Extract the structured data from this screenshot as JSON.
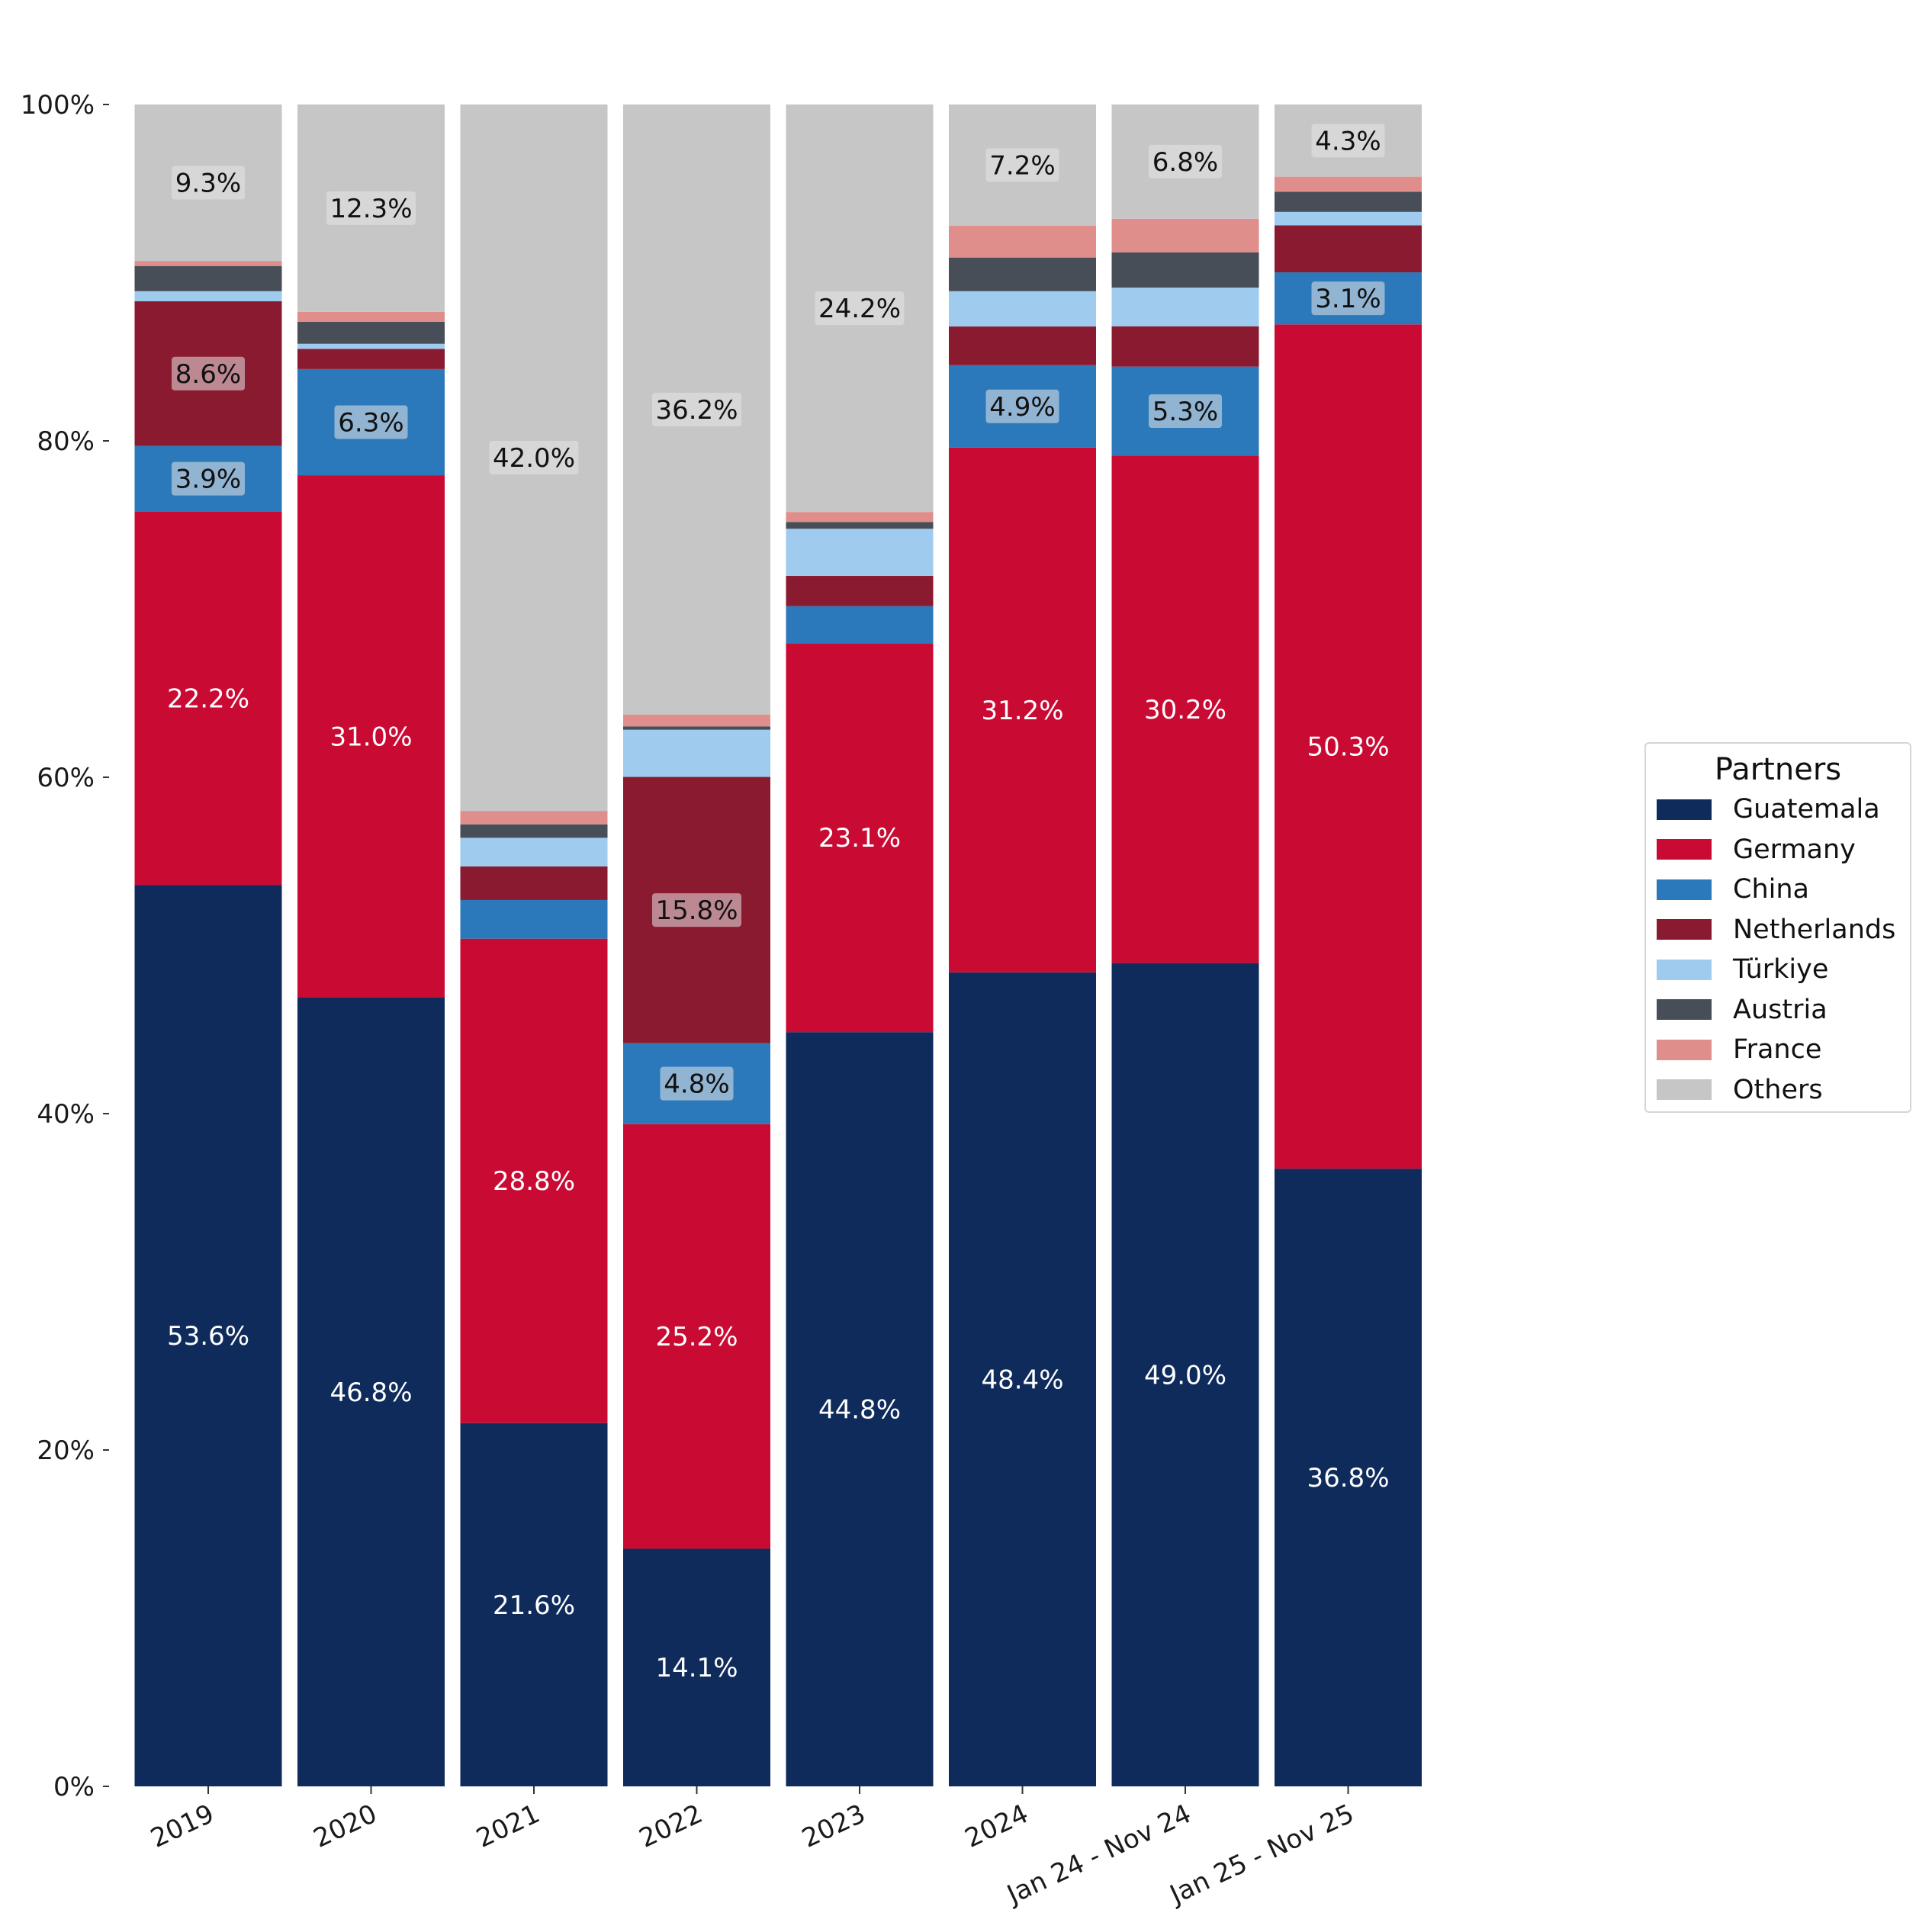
{
  "chart_data": {
    "type": "bar",
    "stacked": true,
    "normalized_percent": true,
    "categories": [
      "2019",
      "2020",
      "2021",
      "2022",
      "2023",
      "2024",
      "Jan 24 - Nov 24",
      "Jan 25 - Nov 25"
    ],
    "y_ticks": [
      "0%",
      "20%",
      "40%",
      "60%",
      "80%",
      "100%"
    ],
    "ylim": [
      0,
      100
    ],
    "grid": false,
    "legend": {
      "title": "Partners",
      "placement": "right"
    },
    "series": [
      {
        "name": "Guatemala",
        "color": "#0e2b5c",
        "values": [
          53.6,
          46.8,
          21.6,
          14.1,
          44.8,
          48.4,
          49.0,
          36.8
        ],
        "labels": [
          "53.6%",
          "46.8%",
          "21.6%",
          "14.1%",
          "44.8%",
          "48.4%",
          "49.0%",
          "36.8%"
        ]
      },
      {
        "name": "Germany",
        "color": "#c90b34",
        "values": [
          22.2,
          31.0,
          28.8,
          25.2,
          23.1,
          31.2,
          30.2,
          50.3
        ],
        "labels": [
          "22.2%",
          "31.0%",
          "28.8%",
          "25.2%",
          "23.1%",
          "31.2%",
          "30.2%",
          "50.3%"
        ]
      },
      {
        "name": "China",
        "color": "#2b79ba",
        "values": [
          3.9,
          6.3,
          2.3,
          4.8,
          2.2,
          4.9,
          5.3,
          3.1
        ],
        "labels": [
          "3.9%",
          "6.3%",
          "",
          "4.8%",
          "",
          "4.9%",
          "5.3%",
          "3.1%"
        ]
      },
      {
        "name": "Netherlands",
        "color": "#8a1a30",
        "values": [
          8.6,
          1.2,
          2.0,
          15.8,
          1.8,
          2.3,
          2.4,
          2.8
        ],
        "labels": [
          "8.6%",
          "",
          "",
          "15.8%",
          "",
          "",
          "",
          ""
        ]
      },
      {
        "name": "Türkiye",
        "color": "#9ecbee",
        "values": [
          0.6,
          0.3,
          1.7,
          2.8,
          2.8,
          2.1,
          2.3,
          0.8
        ],
        "labels": [
          "",
          "",
          "",
          "",
          "",
          "",
          "",
          ""
        ]
      },
      {
        "name": "Austria",
        "color": "#474e58",
        "values": [
          1.5,
          1.3,
          0.8,
          0.2,
          0.4,
          2.0,
          2.1,
          1.2
        ],
        "labels": [
          "",
          "",
          "",
          "",
          "",
          "",
          "",
          ""
        ]
      },
      {
        "name": "France",
        "color": "#e08e8c",
        "values": [
          0.3,
          0.6,
          0.8,
          0.7,
          0.6,
          1.9,
          2.0,
          0.9
        ],
        "labels": [
          "",
          "",
          "",
          "",
          "",
          "",
          "",
          ""
        ]
      },
      {
        "name": "Others",
        "color": "#c6c6c6",
        "values": [
          9.3,
          12.3,
          42.0,
          36.2,
          24.2,
          7.2,
          6.8,
          4.3
        ],
        "labels": [
          "9.3%",
          "12.3%",
          "42.0%",
          "36.2%",
          "24.2%",
          "7.2%",
          "6.8%",
          "4.3%"
        ]
      }
    ]
  }
}
